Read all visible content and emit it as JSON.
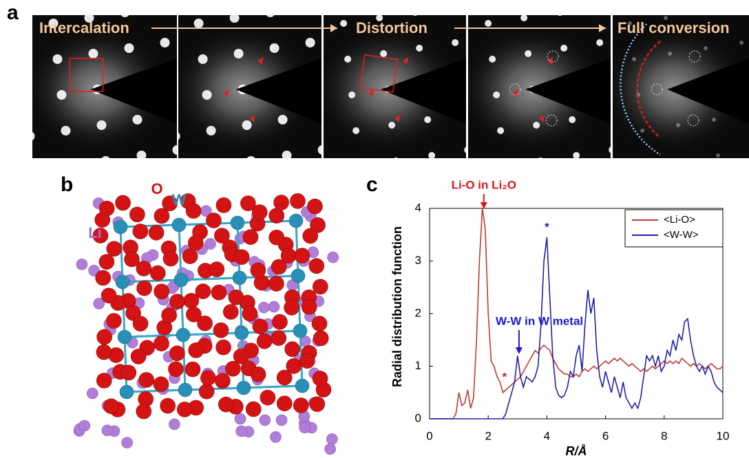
{
  "panel_labels": [
    "a",
    "b",
    "c"
  ],
  "panel_a": {
    "steps": [
      "Intercalation",
      "Distortion",
      "Full conversion"
    ]
  },
  "panel_b": {
    "atom_labels": [
      "O",
      "W",
      "Li"
    ]
  },
  "chart_data": {
    "type": "line",
    "xlabel": "R/Å",
    "ylabel": "Radial distribution function",
    "xlim": [
      0,
      10
    ],
    "ylim": [
      0,
      4
    ],
    "xticks": [
      0,
      2,
      4,
      6,
      8,
      10
    ],
    "yticks": [
      0,
      1,
      2,
      3,
      4
    ],
    "legend": "top-right",
    "annotations": [
      "Li-O in Li₂O",
      "W-W in W metal",
      "*",
      "*"
    ],
    "x": [
      0,
      0.1,
      0.2,
      0.3,
      0.4,
      0.5,
      0.6,
      0.7,
      0.8,
      0.9,
      1,
      1.1,
      1.2,
      1.3,
      1.4,
      1.5,
      1.6,
      1.7,
      1.8,
      1.9,
      2,
      2.1,
      2.2,
      2.3,
      2.4,
      2.5,
      2.6,
      2.7,
      2.8,
      2.9,
      3,
      3.1,
      3.2,
      3.3,
      3.4,
      3.5,
      3.6,
      3.7,
      3.8,
      3.9,
      4,
      4.1,
      4.2,
      4.3,
      4.4,
      4.5,
      4.6,
      4.7,
      4.8,
      4.9,
      5,
      5.1,
      5.2,
      5.3,
      5.4,
      5.5,
      5.6,
      5.7,
      5.8,
      5.9,
      6,
      6.1,
      6.2,
      6.3,
      6.4,
      6.5,
      6.6,
      6.7,
      6.8,
      6.9,
      7,
      7.1,
      7.2,
      7.3,
      7.4,
      7.5,
      7.6,
      7.7,
      7.8,
      7.9,
      8,
      8.1,
      8.2,
      8.3,
      8.4,
      8.5,
      8.6,
      8.7,
      8.8,
      8.9,
      9,
      9.1,
      9.2,
      9.3,
      9.4,
      9.5,
      9.6,
      9.7,
      9.8,
      9.9,
      10
    ],
    "series": [
      {
        "name": "<Li-O>",
        "color": "#c0392b",
        "values": [
          0,
          0,
          0,
          0,
          0,
          0,
          0,
          0,
          0,
          0.1,
          0.5,
          0.25,
          0.3,
          0.55,
          0.2,
          0.4,
          1.5,
          3.0,
          4.0,
          3.6,
          2.0,
          1.1,
          1.0,
          0.8,
          0.7,
          0.5,
          0.55,
          0.6,
          0.65,
          0.7,
          0.75,
          0.8,
          0.9,
          1.0,
          1.1,
          1.2,
          1.3,
          1.25,
          1.35,
          1.4,
          1.35,
          1.3,
          1.15,
          1.05,
          0.95,
          0.9,
          0.85,
          0.85,
          0.8,
          0.8,
          0.85,
          0.8,
          0.9,
          0.95,
          0.9,
          0.95,
          1.0,
          0.95,
          1.0,
          1.05,
          1.1,
          1.05,
          1.1,
          1.15,
          1.1,
          1.15,
          1.1,
          1.05,
          1.0,
          1.05,
          1.0,
          0.95,
          0.9,
          0.95,
          0.9,
          0.95,
          1.0,
          0.95,
          1.0,
          1.05,
          1.1,
          1.05,
          1.1,
          1.05,
          1.1,
          1.05,
          1.15,
          1.1,
          1.05,
          1.0,
          1.05,
          1.0,
          1.05,
          1.0,
          0.95,
          1.0,
          1.05,
          1.0,
          0.95,
          0.95,
          1.0
        ]
      },
      {
        "name": "<W-W>",
        "color": "#1f1fa8",
        "values": [
          0,
          0,
          0,
          0,
          0,
          0,
          0,
          0,
          0,
          0,
          0,
          0,
          0,
          0,
          0,
          0,
          0,
          0,
          0,
          0,
          0,
          0,
          0,
          0,
          0,
          0,
          0.1,
          0.3,
          0.5,
          0.7,
          1.2,
          0.8,
          0.6,
          0.8,
          0.75,
          0.7,
          0.8,
          1.0,
          1.8,
          3.0,
          3.45,
          2.3,
          1.2,
          0.6,
          0.45,
          0.4,
          0.45,
          0.6,
          0.9,
          0.8,
          1.2,
          1.4,
          0.9,
          1.8,
          2.45,
          2.0,
          2.3,
          1.3,
          0.8,
          0.6,
          0.9,
          0.7,
          0.5,
          0.8,
          0.6,
          0.4,
          0.7,
          0.4,
          0.3,
          0.2,
          0.3,
          0.2,
          0.4,
          0.8,
          1.2,
          1.1,
          1.2,
          1.0,
          1.2,
          0.9,
          1.0,
          1.3,
          1.2,
          1.5,
          1.3,
          1.6,
          1.5,
          1.85,
          1.9,
          1.5,
          1.2,
          1.0,
          0.9,
          1.0,
          0.85,
          1.0,
          0.9,
          0.7,
          0.6,
          0.55,
          0.5
        ]
      }
    ]
  }
}
